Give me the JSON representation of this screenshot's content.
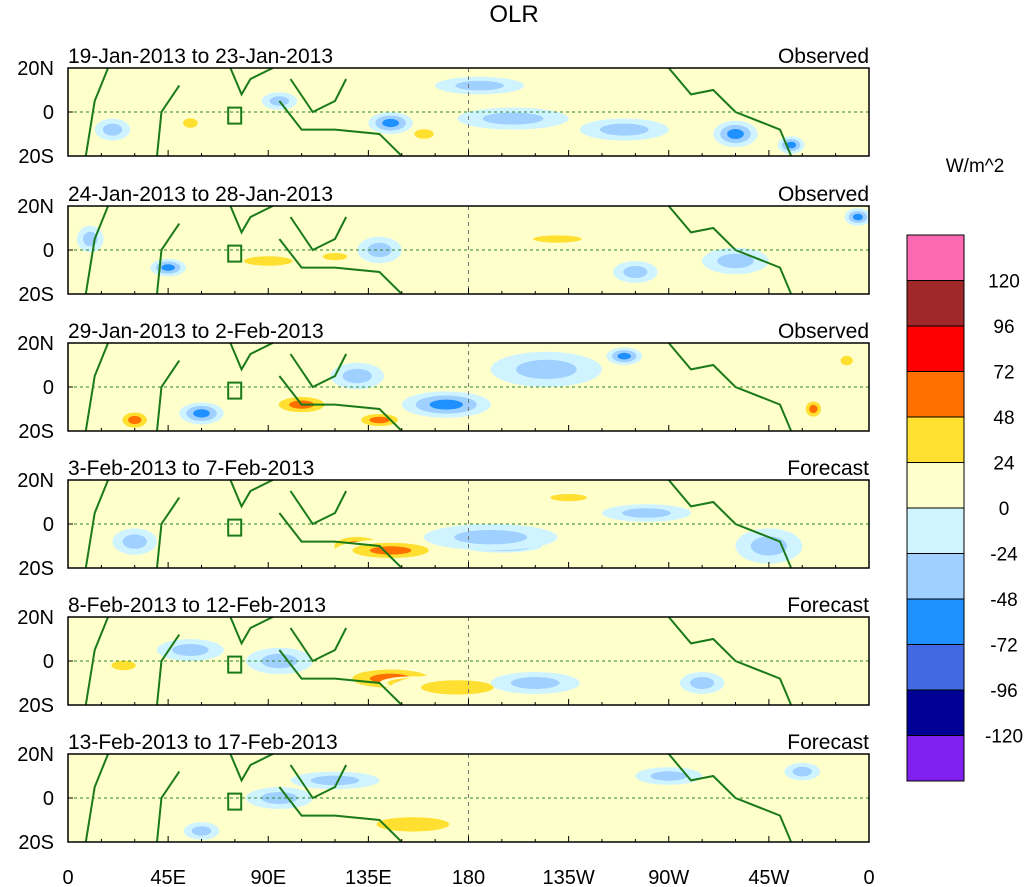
{
  "chart_data": {
    "type": "heatmap",
    "title": "OLR",
    "units_label": "W/m^2",
    "x_ticks": [
      "0",
      "45E",
      "90E",
      "135E",
      "180",
      "135W",
      "90W",
      "45W",
      "0"
    ],
    "x_tick_lons": [
      0,
      45,
      90,
      135,
      180,
      225,
      270,
      315,
      360
    ],
    "y_ticks": [
      "20N",
      "0",
      "20S"
    ],
    "y_tick_lats": [
      20,
      0,
      -20
    ],
    "lat_range": [
      -20,
      20
    ],
    "lon_range": [
      0,
      360
    ],
    "colorbar": {
      "labels": [
        "120",
        "96",
        "72",
        "48",
        "24",
        "0",
        "-24",
        "-48",
        "-72",
        "-96",
        "-120"
      ],
      "colors": [
        "#ff69b4",
        "#a02828",
        "#ff0000",
        "#ff7000",
        "#ffe030",
        "#ffffcc",
        "#d0f4ff",
        "#a0d0ff",
        "#1e90ff",
        "#4169e1",
        "#000096",
        "#8020f0"
      ]
    },
    "panels": [
      {
        "period": "19-Jan-2013 to 23-Jan-2013",
        "kind": "Observed",
        "features": [
          [
            20,
            -8,
            -30,
            8,
            5
          ],
          [
            55,
            -5,
            30,
            6,
            4
          ],
          [
            95,
            5,
            -30,
            8,
            4
          ],
          [
            145,
            -5,
            -60,
            10,
            5
          ],
          [
            160,
            -10,
            40,
            8,
            4
          ],
          [
            200,
            -3,
            -40,
            25,
            5
          ],
          [
            250,
            -8,
            -30,
            20,
            5
          ],
          [
            300,
            -10,
            -50,
            10,
            6
          ],
          [
            325,
            -15,
            -70,
            6,
            4
          ],
          [
            185,
            12,
            -30,
            20,
            4
          ]
        ]
      },
      {
        "period": "24-Jan-2013 to 28-Jan-2013",
        "kind": "Observed",
        "features": [
          [
            10,
            5,
            -40,
            6,
            6
          ],
          [
            45,
            -8,
            -60,
            8,
            4
          ],
          [
            90,
            -5,
            30,
            20,
            4
          ],
          [
            120,
            -3,
            40,
            10,
            3
          ],
          [
            140,
            0,
            -40,
            10,
            6
          ],
          [
            220,
            5,
            30,
            20,
            3
          ],
          [
            255,
            -10,
            -40,
            10,
            5
          ],
          [
            300,
            -5,
            -30,
            15,
            6
          ],
          [
            355,
            15,
            -50,
            6,
            4
          ]
        ]
      },
      {
        "period": "29-Jan-2013 to 2-Feb-2013",
        "kind": "Observed",
        "features": [
          [
            30,
            -15,
            50,
            8,
            5
          ],
          [
            60,
            -12,
            -50,
            10,
            5
          ],
          [
            105,
            -8,
            50,
            15,
            5
          ],
          [
            140,
            -15,
            60,
            12,
            4
          ],
          [
            130,
            5,
            -40,
            12,
            6
          ],
          [
            170,
            -8,
            -50,
            20,
            6
          ],
          [
            250,
            14,
            -70,
            8,
            4
          ],
          [
            215,
            8,
            -30,
            25,
            8
          ],
          [
            335,
            -10,
            50,
            5,
            5
          ],
          [
            350,
            12,
            30,
            5,
            4
          ]
        ]
      },
      {
        "period": "3-Feb-2013 to 7-Feb-2013",
        "kind": "Forecast",
        "features": [
          [
            30,
            -8,
            -30,
            10,
            6
          ],
          [
            130,
            -10,
            70,
            15,
            6
          ],
          [
            145,
            -12,
            50,
            25,
            5
          ],
          [
            195,
            -10,
            -90,
            18,
            3
          ],
          [
            190,
            -6,
            -40,
            30,
            6
          ],
          [
            225,
            12,
            30,
            15,
            3
          ],
          [
            315,
            -10,
            -30,
            15,
            8
          ],
          [
            260,
            5,
            -30,
            20,
            4
          ]
        ]
      },
      {
        "period": "8-Feb-2013 to 12-Feb-2013",
        "kind": "Forecast",
        "features": [
          [
            25,
            -2,
            30,
            10,
            4
          ],
          [
            145,
            -8,
            70,
            25,
            6
          ],
          [
            155,
            -10,
            90,
            15,
            3
          ],
          [
            175,
            -12,
            40,
            30,
            6
          ],
          [
            95,
            0,
            -40,
            15,
            6
          ],
          [
            210,
            -10,
            -30,
            20,
            5
          ],
          [
            285,
            -10,
            -40,
            10,
            5
          ],
          [
            55,
            5,
            -30,
            15,
            5
          ]
        ]
      },
      {
        "period": "13-Feb-2013 to 17-Feb-2013",
        "kind": "Forecast",
        "features": [
          [
            120,
            8,
            -40,
            20,
            4
          ],
          [
            145,
            -10,
            60,
            20,
            5
          ],
          [
            155,
            -12,
            40,
            30,
            6
          ],
          [
            60,
            -15,
            -40,
            8,
            4
          ],
          [
            270,
            10,
            -30,
            15,
            4
          ],
          [
            330,
            12,
            -30,
            8,
            4
          ],
          [
            95,
            0,
            -30,
            15,
            5
          ]
        ]
      }
    ]
  }
}
